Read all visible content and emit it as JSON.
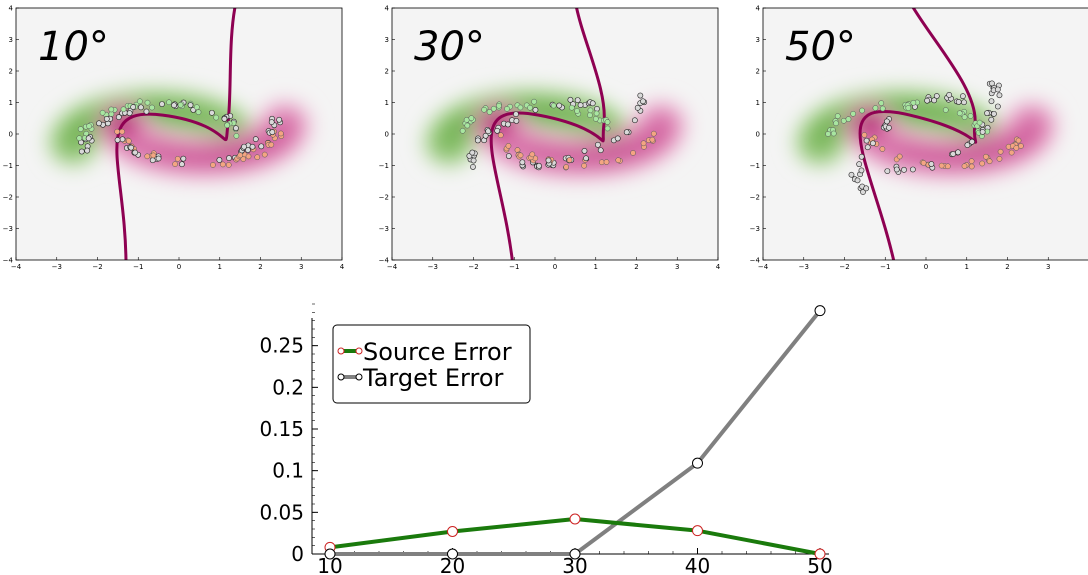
{
  "panels": [
    {
      "label": "10°",
      "x_ticks": [
        "−4",
        "−3",
        "−2",
        "−1",
        "0",
        "1",
        "2",
        "3",
        "4"
      ],
      "y_ticks": [
        "4",
        "3",
        "2",
        "1",
        "0",
        "−1",
        "−2",
        "−3",
        "−4"
      ],
      "xlim": [
        -4,
        4
      ],
      "ylim": [
        -4,
        4
      ],
      "rotation_deg": 10
    },
    {
      "label": "30°",
      "x_ticks": [
        "−4",
        "−3",
        "−2",
        "−1",
        "0",
        "1",
        "2",
        "3",
        "4"
      ],
      "y_ticks": [
        "4",
        "3",
        "2",
        "1",
        "0",
        "−1",
        "−2",
        "−3",
        "−4"
      ],
      "xlim": [
        -4,
        4
      ],
      "ylim": [
        -4,
        4
      ],
      "rotation_deg": 30
    },
    {
      "label": "50°",
      "x_ticks": [
        "−4",
        "−3",
        "−2",
        "−1",
        "0",
        "1",
        "2",
        "3"
      ],
      "y_ticks": [
        "4",
        "3",
        "2",
        "1",
        "0",
        "−1",
        "−2",
        "−3",
        "−4"
      ],
      "xlim": [
        -4,
        4
      ],
      "ylim": [
        -4,
        4
      ],
      "rotation_deg": 50
    }
  ],
  "chart_data": {
    "type": "line",
    "title": "",
    "xlabel": "",
    "ylabel": "",
    "x": [
      10,
      20,
      30,
      40,
      50
    ],
    "x_ticks": [
      "10",
      "20",
      "30",
      "40",
      "50"
    ],
    "y_ticks": [
      "0",
      "0.05",
      "0.1",
      "0.15",
      "0.2",
      "0.25"
    ],
    "xlim": [
      10,
      50
    ],
    "ylim": [
      0,
      0.3
    ],
    "legend_position": "top-left",
    "series": [
      {
        "name": "Source Error",
        "values": [
          0.008,
          0.027,
          0.042,
          0.028,
          0.0
        ],
        "color": "#1a7a0c",
        "marker_edge": "#cc2222"
      },
      {
        "name": "Target Error",
        "values": [
          0.0,
          0.0,
          0.0,
          0.109,
          0.292
        ],
        "color": "#808080",
        "marker_edge": "#000000"
      }
    ]
  },
  "colors": {
    "green_dark": "#1f6e0f",
    "magenta_dark": "#8e0152",
    "boundary": "#8e0152",
    "background": "#f4f4f4"
  }
}
